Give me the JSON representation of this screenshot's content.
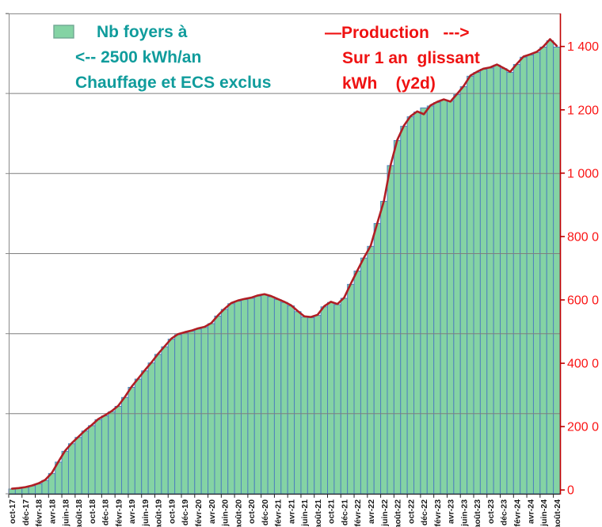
{
  "legend_left": {
    "swatch_color": "#84D3A4",
    "swatch_border": "#71A894",
    "text_color": "#109C9C",
    "lines": [
      "Nb foyers à",
      "<-- 2500 kWh/an",
      "Chauffage et ECS exclus"
    ]
  },
  "legend_right": {
    "text_color": "#EF1212",
    "lines": [
      "—Production   --->",
      "Sur 1 an  glissant",
      "kWh    (y2d)"
    ]
  },
  "y_axis_right": {
    "color": "#FA1414",
    "axis_line_color": "#C00000",
    "tick_labels_top_to_bottom": [
      "1 400",
      "1 200",
      "1 000",
      "800 0",
      "600 0",
      "400 0",
      "200 0",
      "0"
    ]
  },
  "x_axis": {
    "label_color": "#1a1a1a",
    "tick_labels": [
      "oct-17",
      "déc-17",
      "févr-18",
      "avr-18",
      "juin-18",
      "août-18",
      "oct-18",
      "déc-18",
      "févr-19",
      "avr-19",
      "juin-19",
      "août-19",
      "oct-19",
      "déc-19",
      "févr-20",
      "avr-20",
      "juin-20",
      "août-20",
      "oct-20",
      "déc-20",
      "févr-21",
      "avr-21",
      "juin-21",
      "août-21",
      "oct-21",
      "déc-21",
      "févr-22",
      "avr-22",
      "juin-22",
      "août-22",
      "oct-22",
      "déc-22",
      "févr-23",
      "avr-23",
      "juin-23",
      "août-23",
      "oct-23",
      "déc-23",
      "févr-24",
      "avr-24",
      "juin-24",
      "août-24"
    ]
  },
  "chart_data": {
    "type": "bar",
    "note": "monthly bars (households producing, left axis hidden) + dark red line (rolling 1-year production, right axis y2); values expressed on the visible right-axis scale 0-1400",
    "grid": "horizontal",
    "legend_position": "inside-top",
    "y2lim": [
      0,
      1400
    ],
    "y2_ticks": [
      0,
      200,
      400,
      600,
      800,
      1000,
      1200,
      1400
    ],
    "categories": [
      "oct-17",
      "nov-17",
      "déc-17",
      "janv-18",
      "févr-18",
      "mars-18",
      "avr-18",
      "mai-18",
      "juin-18",
      "juil-18",
      "août-18",
      "sept-18",
      "oct-18",
      "nov-18",
      "déc-18",
      "janv-19",
      "févr-19",
      "mars-19",
      "avr-19",
      "mai-19",
      "juin-19",
      "juil-19",
      "août-19",
      "sept-19",
      "oct-19",
      "nov-19",
      "déc-19",
      "janv-20",
      "févr-20",
      "mars-20",
      "avr-20",
      "mai-20",
      "juin-20",
      "juil-20",
      "août-20",
      "sept-20",
      "oct-20",
      "nov-20",
      "déc-20",
      "janv-21",
      "févr-21",
      "mars-21",
      "avr-21",
      "mai-21",
      "juin-21",
      "juil-21",
      "août-21",
      "sept-21",
      "oct-21",
      "nov-21",
      "déc-21",
      "janv-22",
      "févr-22",
      "mars-22",
      "avr-22",
      "mai-22",
      "juin-22",
      "juil-22",
      "août-22",
      "sept-22",
      "oct-22",
      "nov-22",
      "déc-22",
      "janv-23",
      "févr-23",
      "mars-23",
      "avr-23",
      "mai-23",
      "juin-23",
      "juil-23",
      "août-23",
      "sept-23",
      "oct-23",
      "nov-23",
      "déc-23",
      "janv-24",
      "févr-24",
      "mars-24",
      "avr-24",
      "mai-24",
      "juin-24",
      "juil-24",
      "août-24"
    ],
    "series": [
      {
        "name": "Nb foyers à <-- 2500 kWh/an Chauffage et ECS exclus",
        "type": "bar",
        "fill": "#84D3A4",
        "border": "#4F81BD",
        "values": [
          3,
          5,
          8,
          13,
          19,
          30,
          52,
          88,
          122,
          146,
          166,
          186,
          203,
          222,
          234,
          247,
          264,
          292,
          324,
          350,
          376,
          401,
          428,
          452,
          476,
          490,
          496,
          501,
          508,
          513,
          525,
          549,
          570,
          588,
          596,
          601,
          605,
          612,
          616,
          610,
          601,
          592,
          581,
          563,
          546,
          544,
          551,
          578,
          592,
          585,
          605,
          649,
          691,
          732,
          769,
          841,
          911,
          1024,
          1103,
          1148,
          1178,
          1193,
          1206,
          1212,
          1223,
          1231,
          1228,
          1248,
          1273,
          1306,
          1318,
          1328,
          1332,
          1341,
          1330,
          1318,
          1343,
          1366,
          1373,
          1381,
          1398,
          1418,
          1398
        ]
      },
      {
        "name": "Production Sur 1 an glissant kWh (y2d)",
        "type": "line",
        "color": "#B01E24",
        "axis": "secondary",
        "values": [
          4,
          6,
          9,
          14,
          21,
          32,
          54,
          90,
          124,
          148,
          168,
          188,
          205,
          224,
          236,
          249,
          266,
          294,
          326,
          352,
          378,
          403,
          430,
          454,
          478,
          492,
          498,
          503,
          510,
          515,
          527,
          551,
          572,
          590,
          598,
          603,
          607,
          614,
          618,
          612,
          603,
          594,
          583,
          565,
          548,
          546,
          553,
          580,
          594,
          587,
          607,
          651,
          693,
          734,
          771,
          843,
          913,
          1026,
          1105,
          1150,
          1180,
          1195,
          1186,
          1214,
          1225,
          1233,
          1226,
          1250,
          1275,
          1308,
          1320,
          1330,
          1334,
          1343,
          1332,
          1320,
          1345,
          1368,
          1375,
          1383,
          1400,
          1423,
          1402
        ]
      }
    ]
  }
}
